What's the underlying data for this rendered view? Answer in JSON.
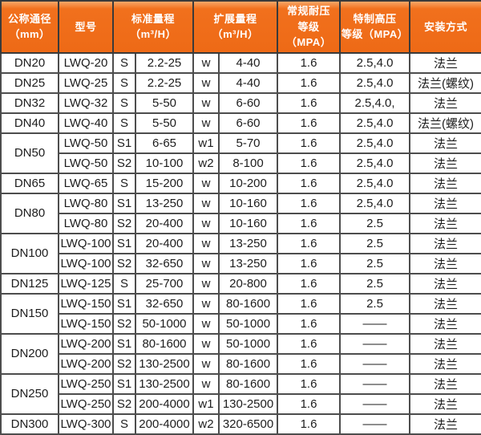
{
  "colors": {
    "header_bg": "#ee6a16",
    "header_bg_light": "#f8a869",
    "header_text": "#ffffff",
    "border_dark": "#3a3a3a",
    "border_body": "#4d4d4d",
    "cell_text": "#1d1d1d",
    "page_bg": "#ffffff"
  },
  "header": {
    "col_diameter": "公称通径\n（mm）",
    "col_model": "型号",
    "col_std_range": "标准量程\n（m³/H）",
    "col_ext_range": "扩展量程\n（m³/H）",
    "col_regular_pressure": "常规耐压\n等级（MPA）",
    "col_high_pressure": "特制高压\n等级（MPA）",
    "col_install": "安装方式"
  },
  "rows": [
    {
      "dn": "DN20",
      "dn_rowspan": 1,
      "model": "LWQ-20",
      "s_code": "S",
      "std_range": "2.2-25",
      "w_code": "w",
      "ext_range": "4-40",
      "regular_mpa": "1.6",
      "high_mpa": "2.5,4.0",
      "install": "法兰"
    },
    {
      "dn": "DN25",
      "dn_rowspan": 1,
      "model": "LWQ-25",
      "s_code": "S",
      "std_range": "2.2-25",
      "w_code": "w",
      "ext_range": "4-40",
      "regular_mpa": "1.6",
      "high_mpa": "2.5,4.0",
      "install": "法兰(螺纹)"
    },
    {
      "dn": "DN32",
      "dn_rowspan": 1,
      "model": "LWQ-32",
      "s_code": "S",
      "std_range": "5-50",
      "w_code": "w",
      "ext_range": "6-60",
      "regular_mpa": "1.6",
      "high_mpa": "2.5,4.0,",
      "install": "法兰"
    },
    {
      "dn": "DN40",
      "dn_rowspan": 1,
      "model": "LWQ-40",
      "s_code": "S",
      "std_range": "5-50",
      "w_code": "w",
      "ext_range": "6-60",
      "regular_mpa": "1.6",
      "high_mpa": "2.5,4.0",
      "install": "法兰(螺纹)"
    },
    {
      "dn": "DN50",
      "dn_rowspan": 2,
      "model": "LWQ-50",
      "s_code": "S1",
      "std_range": "6-65",
      "w_code": "w1",
      "ext_range": "5-70",
      "regular_mpa": "1.6",
      "high_mpa": "2.5,4.0",
      "install": "法兰"
    },
    {
      "model": "LWQ-50",
      "s_code": "S2",
      "std_range": "10-100",
      "w_code": "w2",
      "ext_range": "8-100",
      "regular_mpa": "1.6",
      "high_mpa": "2.5,4.0",
      "install": "法兰"
    },
    {
      "dn": "DN65",
      "dn_rowspan": 1,
      "model": "LWQ-65",
      "s_code": "S",
      "std_range": "15-200",
      "w_code": "w",
      "ext_range": "10-200",
      "regular_mpa": "1.6",
      "high_mpa": "2.5,4.0",
      "install": "法兰"
    },
    {
      "dn": "DN80",
      "dn_rowspan": 2,
      "model": "LWQ-80",
      "s_code": "S1",
      "std_range": "13-250",
      "w_code": "w",
      "ext_range": "10-160",
      "regular_mpa": "1.6",
      "high_mpa": "2.5,4.0",
      "install": "法兰"
    },
    {
      "model": "LWQ-80",
      "s_code": "S2",
      "std_range": "20-400",
      "w_code": "w",
      "ext_range": "10-160",
      "regular_mpa": "1.6",
      "high_mpa": "2.5",
      "install": "法兰"
    },
    {
      "dn": "DN100",
      "dn_rowspan": 2,
      "model": "LWQ-100",
      "s_code": "S1",
      "std_range": "20-400",
      "w_code": "w",
      "ext_range": "13-250",
      "regular_mpa": "1.6",
      "high_mpa": "2.5",
      "install": "法兰"
    },
    {
      "model": "LWQ-100",
      "s_code": "S2",
      "std_range": "32-650",
      "w_code": "w",
      "ext_range": "13-250",
      "regular_mpa": "1.6",
      "high_mpa": "2.5",
      "install": "法兰"
    },
    {
      "dn": "DN125",
      "dn_rowspan": 1,
      "model": "LWQ-125",
      "s_code": "S",
      "std_range": "25-700",
      "w_code": "w",
      "ext_range": "20-800",
      "regular_mpa": "1.6",
      "high_mpa": "2.5",
      "install": "法兰"
    },
    {
      "dn": "DN150",
      "dn_rowspan": 2,
      "model": "LWQ-150",
      "s_code": "S1",
      "std_range": "32-650",
      "w_code": "w",
      "ext_range": "80-1600",
      "regular_mpa": "1.6",
      "high_mpa": "2.5",
      "install": "法兰"
    },
    {
      "model": "LWQ-150",
      "s_code": "S2",
      "std_range": "50-1000",
      "w_code": "w",
      "ext_range": "50-1000",
      "regular_mpa": "1.6",
      "high_mpa": "——",
      "install": "法兰"
    },
    {
      "dn": "DN200",
      "dn_rowspan": 2,
      "model": "LWQ-200",
      "s_code": "S1",
      "std_range": "80-1600",
      "w_code": "w",
      "ext_range": "50-1000",
      "regular_mpa": "1.6",
      "high_mpa": "——",
      "install": "法兰"
    },
    {
      "model": "LWQ-200",
      "s_code": "S2",
      "std_range": "130-2500",
      "w_code": "w",
      "ext_range": "80-1600",
      "regular_mpa": "1.6",
      "high_mpa": "——",
      "install": "法兰"
    },
    {
      "dn": "DN250",
      "dn_rowspan": 2,
      "model": "LWQ-250",
      "s_code": "S1",
      "std_range": "130-2500",
      "w_code": "w",
      "ext_range": "80-1600",
      "regular_mpa": "1.6",
      "high_mpa": "——",
      "install": "法兰"
    },
    {
      "model": "LWQ-250",
      "s_code": "S2",
      "std_range": "200-4000",
      "w_code": "w1",
      "ext_range": "130-2500",
      "regular_mpa": "1.6",
      "high_mpa": "——",
      "install": "法兰"
    },
    {
      "dn": "DN300",
      "dn_rowspan": 1,
      "model": "LWQ-300",
      "s_code": "S",
      "std_range": "200-4000",
      "w_code": "w2",
      "ext_range": "320-6500",
      "regular_mpa": "1.6",
      "high_mpa": "——",
      "install": "法兰"
    }
  ]
}
